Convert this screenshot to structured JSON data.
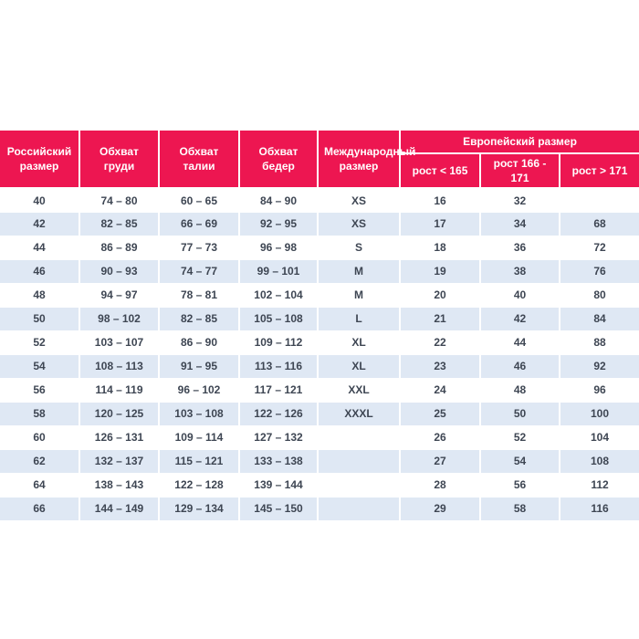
{
  "colors": {
    "header_bg": "#ED1651",
    "header_text": "#FFFFFF",
    "row_alt_bg": "#DFE8F4",
    "cell_text": "#3E4653",
    "page_bg": "#FFFFFF"
  },
  "table": {
    "header": {
      "russian_size": "Российский размер",
      "chest": "Обхват груди",
      "waist": "Обхват талии",
      "hips": "Обхват бедер",
      "international_size": "Международный размер",
      "european_size_group": "Европейский размер",
      "height_lt_165": "рост < 165",
      "height_166_171": "рост 166 - 171",
      "height_gt_171": "рост > 171"
    },
    "rows": [
      [
        "40",
        "74 – 80",
        "60 – 65",
        "84 – 90",
        "XS",
        "16",
        "32",
        ""
      ],
      [
        "42",
        "82 – 85",
        "66 – 69",
        "92 – 95",
        "XS",
        "17",
        "34",
        "68"
      ],
      [
        "44",
        "86 – 89",
        "77 – 73",
        "96 – 98",
        "S",
        "18",
        "36",
        "72"
      ],
      [
        "46",
        "90 – 93",
        "74 – 77",
        "99 – 101",
        "M",
        "19",
        "38",
        "76"
      ],
      [
        "48",
        "94 – 97",
        "78 – 81",
        "102 – 104",
        "M",
        "20",
        "40",
        "80"
      ],
      [
        "50",
        "98 – 102",
        "82 – 85",
        "105 – 108",
        "L",
        "21",
        "42",
        "84"
      ],
      [
        "52",
        "103 – 107",
        "86 – 90",
        "109 – 112",
        "XL",
        "22",
        "44",
        "88"
      ],
      [
        "54",
        "108 – 113",
        "91 – 95",
        "113 – 116",
        "XL",
        "23",
        "46",
        "92"
      ],
      [
        "56",
        "114 – 119",
        "96 – 102",
        "117 – 121",
        "XXL",
        "24",
        "48",
        "96"
      ],
      [
        "58",
        "120 – 125",
        "103 – 108",
        "122 – 126",
        "XXXL",
        "25",
        "50",
        "100"
      ],
      [
        "60",
        "126 – 131",
        "109 – 114",
        "127 – 132",
        "",
        "26",
        "52",
        "104"
      ],
      [
        "62",
        "132 – 137",
        "115 – 121",
        "133 – 138",
        "",
        "27",
        "54",
        "108"
      ],
      [
        "64",
        "138 – 143",
        "122 – 128",
        "139 – 144",
        "",
        "28",
        "56",
        "112"
      ],
      [
        "66",
        "144 – 149",
        "129 – 134",
        "145 – 150",
        "",
        "29",
        "58",
        "116"
      ]
    ]
  }
}
